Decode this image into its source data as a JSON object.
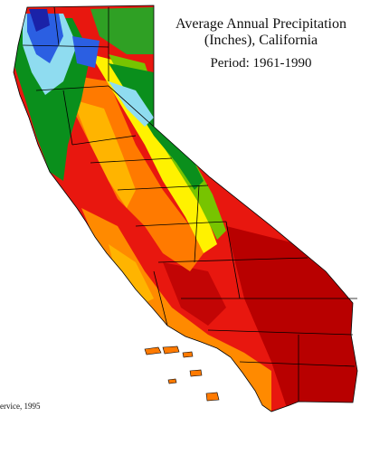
{
  "map": {
    "title_line1": "Average Annual Precipitation",
    "title_line2": "(Inches), California",
    "period": "Period: 1961-1990",
    "credit": "ervice, 1995",
    "precip_colors": {
      "very_dry": "#b80000",
      "dry": "#e8170f",
      "semi_dry": "#ff7a00",
      "moderate": "#ffb400",
      "yellow": "#fff200",
      "light_green": "#77c400",
      "green": "#0a8f1c",
      "cyan": "#8fdcf0",
      "blue": "#2b5fe2",
      "dark_blue": "#1a22a8"
    }
  }
}
